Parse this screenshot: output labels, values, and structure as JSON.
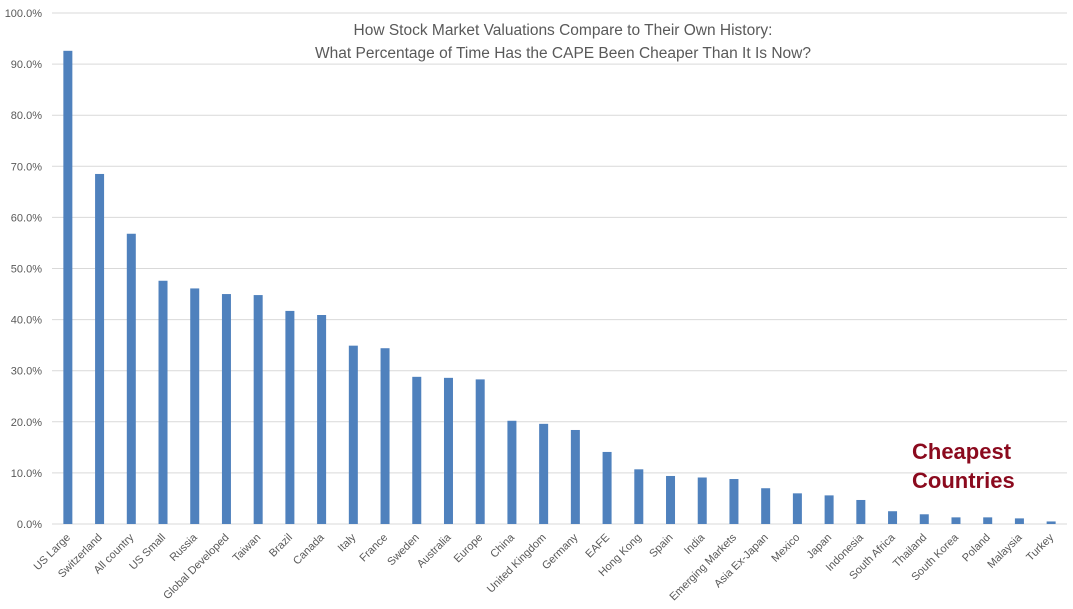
{
  "chart_data": {
    "type": "bar",
    "title": [
      "How Stock Market Valuations Compare to Their Own History:",
      "What Percentage of Time Has the CAPE Been Cheaper Than It Is Now?"
    ],
    "xlabel": "",
    "ylabel": "",
    "ylim": [
      0,
      100
    ],
    "y_ticks": [
      "0.0%",
      "10.0%",
      "20.0%",
      "30.0%",
      "40.0%",
      "50.0%",
      "60.0%",
      "70.0%",
      "80.0%",
      "90.0%",
      "100.0%"
    ],
    "grid": true,
    "legend": "none",
    "bar_color": "#4f81bd",
    "categories": [
      "US Large",
      "Switzerland",
      "All country",
      "US Small",
      "Russia",
      "Global Developed",
      "Taiwan",
      "Brazil",
      "Canada",
      "Italy",
      "France",
      "Sweden",
      "Australia",
      "Europe",
      "China",
      "United Kingdom",
      "Germany",
      "EAFE",
      "Hong Kong",
      "Spain",
      "India",
      "Emerging Markets",
      "Asia Ex-Japan",
      "Mexico",
      "Japan",
      "Indonesia",
      "South Africa",
      "Thailand",
      "South Korea",
      "Poland",
      "Malaysia",
      "Turkey"
    ],
    "values": [
      92.6,
      68.5,
      56.8,
      47.6,
      46.1,
      45.0,
      44.8,
      41.7,
      40.9,
      34.9,
      34.4,
      28.8,
      28.6,
      28.3,
      20.2,
      19.6,
      18.4,
      14.1,
      10.7,
      9.4,
      9.1,
      8.8,
      7.0,
      6.0,
      5.6,
      4.7,
      2.5,
      1.9,
      1.3,
      1.3,
      1.1,
      0.5
    ],
    "annotation": [
      "Cheapest",
      "Countries"
    ],
    "annotation_color": "#8b0a1e"
  }
}
